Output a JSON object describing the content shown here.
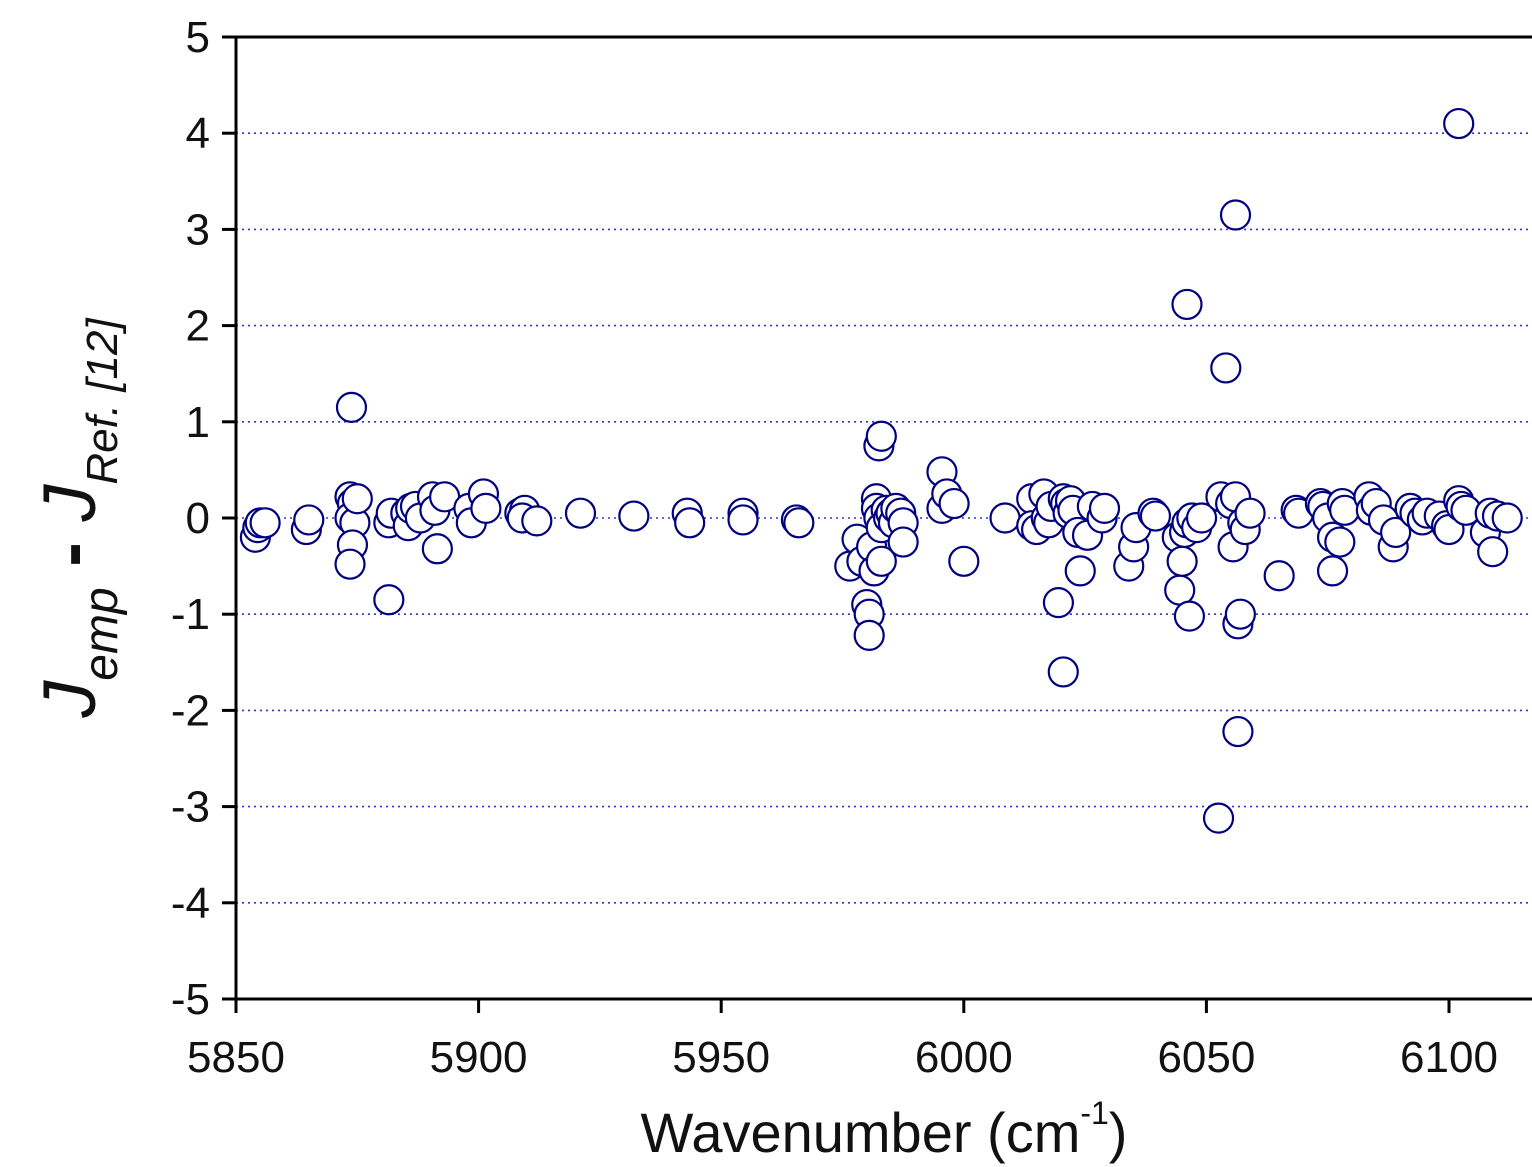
{
  "chart_data": {
    "type": "scatter",
    "title": "",
    "xlabel": {
      "main": "Wavenumber (cm",
      "superscript": "-1",
      "close": ")"
    },
    "ylabel": {
      "j1": "J",
      "sub1": "emp",
      "minus": " - ",
      "j2": "J",
      "sub2": "Ref. [12]"
    },
    "xlim": [
      5850,
      6117
    ],
    "ylim": [
      -5,
      5
    ],
    "xticks": [
      "5850",
      "5900",
      "5950",
      "6000",
      "6050",
      "6100"
    ],
    "yticks": [
      "5",
      "4",
      "3",
      "2",
      "1",
      "0",
      "-1",
      "-2",
      "-3",
      "-4",
      "-5"
    ],
    "grid": "horizontal dotted lines at each y tick",
    "marker": "open circle",
    "colors": {
      "marker": "#000080",
      "grid": "#3333cc",
      "axis": "#000000"
    },
    "series": [
      {
        "points": [
          [
            5854,
            -0.2
          ],
          [
            5854.5,
            -0.1
          ],
          [
            5855,
            -0.05
          ],
          [
            5856,
            -0.05
          ],
          [
            5864.5,
            -0.12
          ],
          [
            5865,
            -0.02
          ],
          [
            5873.8,
            1.15
          ],
          [
            5873.5,
            0.22
          ],
          [
            5874,
            0.15
          ],
          [
            5873.5,
            0.0
          ],
          [
            5874.5,
            -0.05
          ],
          [
            5874,
            -0.28
          ],
          [
            5873.5,
            -0.48
          ],
          [
            5875,
            0.2
          ],
          [
            5881.5,
            -0.85
          ],
          [
            5881.5,
            -0.05
          ],
          [
            5882,
            0.05
          ],
          [
            5885,
            0.05
          ],
          [
            5885.5,
            -0.08
          ],
          [
            5886,
            0.1
          ],
          [
            5887,
            0.12
          ],
          [
            5888,
            0.0
          ],
          [
            5890.5,
            0.22
          ],
          [
            5891,
            0.08
          ],
          [
            5891.5,
            -0.32
          ],
          [
            5893,
            0.22
          ],
          [
            5898,
            0.1
          ],
          [
            5898.5,
            -0.05
          ],
          [
            5901,
            0.25
          ],
          [
            5901.5,
            0.1
          ],
          [
            5908.5,
            0.05
          ],
          [
            5909.5,
            0.08
          ],
          [
            5909,
            0.0
          ],
          [
            5912,
            -0.03
          ],
          [
            5921,
            0.05
          ],
          [
            5932,
            0.02
          ],
          [
            5943,
            0.05
          ],
          [
            5943.5,
            -0.05
          ],
          [
            5954.5,
            0.05
          ],
          [
            5954.5,
            -0.02
          ],
          [
            5965.5,
            -0.02
          ],
          [
            5966,
            -0.05
          ],
          [
            5976.5,
            -0.5
          ],
          [
            5978,
            -0.22
          ],
          [
            5979,
            -0.45
          ],
          [
            5980,
            -0.9
          ],
          [
            5980.5,
            -1.0
          ],
          [
            5980.5,
            -1.22
          ],
          [
            5981,
            -0.3
          ],
          [
            5981.5,
            -0.55
          ],
          [
            5982,
            0.2
          ],
          [
            5982,
            0.1
          ],
          [
            5982.5,
            0.0
          ],
          [
            5983,
            -0.1
          ],
          [
            5983,
            -0.45
          ],
          [
            5982.5,
            0.75
          ],
          [
            5983,
            0.85
          ],
          [
            5984,
            0.08
          ],
          [
            5984.5,
            0.0
          ],
          [
            5985,
            0.05
          ],
          [
            5985.5,
            -0.05
          ],
          [
            5986,
            0.1
          ],
          [
            5987,
            0.05
          ],
          [
            5987.5,
            -0.05
          ],
          [
            5987.5,
            -0.25
          ],
          [
            5995.5,
            0.48
          ],
          [
            5995.5,
            0.1
          ],
          [
            5996.5,
            0.25
          ],
          [
            5998,
            0.15
          ],
          [
            6000,
            -0.45
          ],
          [
            6008.5,
            0.0
          ],
          [
            6014,
            0.2
          ],
          [
            6014,
            -0.08
          ],
          [
            6015,
            -0.12
          ],
          [
            6016.5,
            0.25
          ],
          [
            6017,
            0.0
          ],
          [
            6017.5,
            -0.05
          ],
          [
            6018,
            0.12
          ],
          [
            6019.5,
            -0.88
          ],
          [
            6020.5,
            0.2
          ],
          [
            6020.5,
            -1.6
          ],
          [
            6021,
            0.15
          ],
          [
            6021.5,
            0.05
          ],
          [
            6022,
            0.18
          ],
          [
            6022.5,
            0.08
          ],
          [
            6023.5,
            -0.15
          ],
          [
            6024,
            -0.55
          ],
          [
            6025.5,
            -0.18
          ],
          [
            6026.5,
            0.12
          ],
          [
            6028.5,
            0.0
          ],
          [
            6029,
            0.1
          ],
          [
            6034,
            -0.5
          ],
          [
            6035,
            -0.3
          ],
          [
            6035.5,
            -0.1
          ],
          [
            6039,
            0.05
          ],
          [
            6039.5,
            0.02
          ],
          [
            6044,
            -0.2
          ],
          [
            6044.5,
            -0.75
          ],
          [
            6045,
            -0.45
          ],
          [
            6045.5,
            -0.15
          ],
          [
            6046,
            -0.05
          ],
          [
            6046,
            2.22
          ],
          [
            6046.5,
            -1.02
          ],
          [
            6047,
            0.0
          ],
          [
            6048,
            -0.1
          ],
          [
            6049,
            0.0
          ],
          [
            6052.5,
            -3.12
          ],
          [
            6053,
            0.22
          ],
          [
            6054,
            1.56
          ],
          [
            6055,
            0.15
          ],
          [
            6055.5,
            -0.3
          ],
          [
            6056,
            3.15
          ],
          [
            6056,
            0.22
          ],
          [
            6056.5,
            -1.1
          ],
          [
            6056.5,
            -2.22
          ],
          [
            6057,
            -1.0
          ],
          [
            6057.5,
            -0.05
          ],
          [
            6058,
            -0.12
          ],
          [
            6059,
            0.05
          ],
          [
            6065,
            -0.6
          ],
          [
            6068.5,
            0.08
          ],
          [
            6069,
            0.05
          ],
          [
            6073.5,
            0.15
          ],
          [
            6074,
            0.12
          ],
          [
            6075,
            0.0
          ],
          [
            6076,
            -0.2
          ],
          [
            6076,
            -0.55
          ],
          [
            6077.5,
            -0.25
          ],
          [
            6078,
            0.15
          ],
          [
            6078.5,
            0.08
          ],
          [
            6083.5,
            0.22
          ],
          [
            6084,
            0.08
          ],
          [
            6085,
            0.15
          ],
          [
            6086.5,
            -0.02
          ],
          [
            6088.5,
            -0.3
          ],
          [
            6089,
            -0.15
          ],
          [
            6092,
            0.1
          ],
          [
            6093,
            0.05
          ],
          [
            6094.5,
            -0.02
          ],
          [
            6095.5,
            0.05
          ],
          [
            6098,
            0.02
          ],
          [
            6099.5,
            -0.08
          ],
          [
            6100,
            -0.12
          ],
          [
            6102,
            4.1
          ],
          [
            6102,
            0.18
          ],
          [
            6102.5,
            0.12
          ],
          [
            6103.5,
            0.08
          ],
          [
            6107.5,
            -0.15
          ],
          [
            6108.5,
            0.05
          ],
          [
            6109,
            -0.35
          ],
          [
            6110,
            0.02
          ],
          [
            6112,
            0.0
          ]
        ]
      }
    ]
  }
}
